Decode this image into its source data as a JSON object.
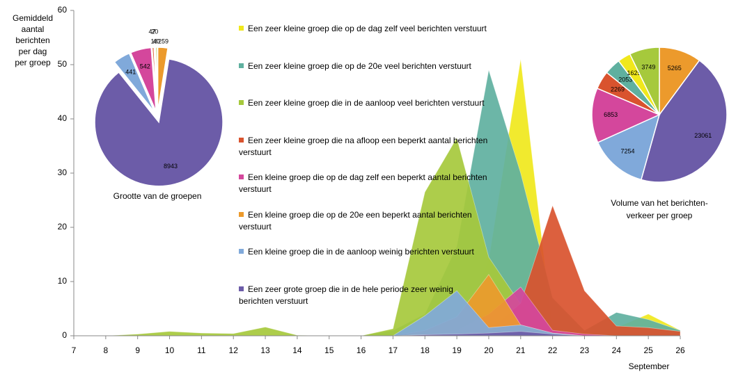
{
  "chart_data": [
    {
      "type": "area",
      "y_label_lines": [
        "Gemiddeld",
        "aantal",
        "berichten",
        "per dag",
        "per groep"
      ],
      "x_label": "September",
      "x": [
        7,
        8,
        9,
        10,
        11,
        12,
        13,
        14,
        15,
        16,
        17,
        18,
        19,
        20,
        21,
        22,
        23,
        24,
        25,
        26
      ],
      "xlim": [
        7,
        26
      ],
      "xticks": [
        7,
        8,
        9,
        10,
        11,
        12,
        13,
        14,
        15,
        16,
        17,
        18,
        19,
        20,
        21,
        22,
        23,
        24,
        25,
        26
      ],
      "ylim": [
        0,
        60
      ],
      "yticks": [
        0,
        10,
        20,
        30,
        40,
        50,
        60
      ],
      "series": [
        {
          "name": "Een zeer kleine groep die op de dag zelf veel berichten verstuurt",
          "color": "#f0e81c",
          "values": [
            0,
            0,
            0,
            0,
            0,
            0,
            0,
            0,
            0,
            0,
            0,
            0,
            0,
            14,
            51,
            1,
            0.5,
            1.5,
            4,
            1
          ]
        },
        {
          "name": "Een zeer kleine groep die op de 20e veel berichten verstuurt",
          "color": "#5fb09f",
          "values": [
            0,
            0,
            0,
            0,
            0,
            0,
            0,
            0,
            0,
            0,
            1,
            4,
            16.5,
            49,
            30,
            7,
            1,
            4.3,
            3,
            1
          ]
        },
        {
          "name": "Een zeer kleine groep die in de aanloop veel berichten verstuurt",
          "color": "#a6c93c",
          "values": [
            0,
            0,
            0.3,
            0.8,
            0.5,
            0.4,
            1.6,
            0.1,
            0,
            0,
            1.3,
            26.5,
            36.5,
            14.5,
            5.8,
            0.5,
            0,
            0,
            0,
            0
          ]
        },
        {
          "name": "Een zeer kleine groep die na afloop een beperkt aantal berichten verstuurt",
          "color": "#d9532e",
          "values": [
            0,
            0,
            0,
            0,
            0,
            0,
            0,
            0,
            0,
            0,
            0,
            0,
            0,
            1,
            6,
            24,
            8.3,
            1.8,
            1.5,
            0.8
          ]
        },
        {
          "name": "Een kleine groep die op de dag zelf een beperkt aantal berichten verstuurt",
          "color": "#d4479c",
          "values": [
            0,
            0,
            0,
            0,
            0,
            0,
            0,
            0,
            0,
            0,
            0,
            0,
            1,
            4,
            9,
            1,
            0.3,
            0,
            0,
            0
          ]
        },
        {
          "name": "Een kleine groep die op de 20e een beperkt aantal berichten verstuurt",
          "color": "#ec9a2c",
          "values": [
            0,
            0,
            0,
            0,
            0,
            0,
            0,
            0,
            0,
            0,
            0,
            1,
            3.5,
            11.3,
            2,
            0.5,
            0,
            0,
            0,
            0
          ]
        },
        {
          "name": "Een kleine groep die in de aanloop weinig berichten verstuurt",
          "color": "#80a9da",
          "values": [
            0,
            0,
            0,
            0,
            0,
            0,
            0,
            0,
            0,
            0,
            0,
            3.7,
            8.3,
            1.5,
            2,
            0.5,
            0,
            0,
            0,
            0
          ]
        },
        {
          "name": "Een zeer grote groep die in de hele periode zeer weinig berichten verstuurt",
          "color": "#6c5ca8",
          "values": [
            0,
            0,
            0,
            0,
            0,
            0,
            0,
            0,
            0,
            0,
            0,
            0.2,
            0.3,
            0.5,
            0.8,
            0.3,
            0,
            0,
            0,
            0
          ]
        }
      ]
    },
    {
      "type": "pie",
      "title": "Grootte van de groepen",
      "explode": true,
      "values": [
        259,
        8943,
        441,
        542,
        47,
        18,
        20,
        40
      ],
      "colors": [
        "#ec9a2c",
        "#6c5ca8",
        "#80a9da",
        "#d4479c",
        "#d9532e",
        "#5fb09f",
        "#f0e81c",
        "#a6c93c"
      ]
    },
    {
      "type": "pie",
      "title_lines": [
        "Volume van het berichten-",
        "verkeer per groep"
      ],
      "explode": false,
      "values": [
        5265,
        23061,
        7254,
        6853,
        2269,
        2053,
        1625,
        3749
      ],
      "colors": [
        "#ec9a2c",
        "#6c5ca8",
        "#80a9da",
        "#d4479c",
        "#d9532e",
        "#5fb09f",
        "#f0e81c",
        "#a6c93c"
      ]
    }
  ]
}
